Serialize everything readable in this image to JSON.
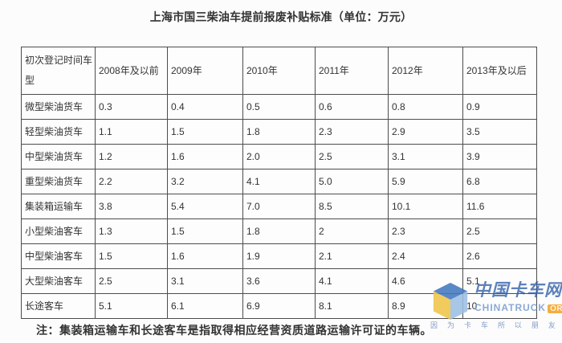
{
  "page": {
    "title": "上海市国三柴油车提前报废补贴标准（单位：万元）",
    "note": "注：集装箱运输车和长途客车是指取得相应经营资质道路运输许可证的车辆。"
  },
  "table": {
    "headers": [
      "初次登记时间车型",
      "2008年及以前",
      "2009年",
      "2010年",
      "2011年",
      "2012年",
      "2013年及以后"
    ],
    "rows": [
      {
        "label": "微型柴油货车",
        "values": [
          "0.3",
          "0.4",
          "0.5",
          "0.6",
          "0.8",
          "0.9"
        ]
      },
      {
        "label": "轻型柴油货车",
        "values": [
          "1.1",
          "1.5",
          "1.8",
          "2.3",
          "2.9",
          "3.5"
        ]
      },
      {
        "label": "中型柴油货车",
        "values": [
          "1.2",
          "1.6",
          "2.0",
          "2.5",
          "3.1",
          "3.9"
        ]
      },
      {
        "label": "重型柴油货车",
        "values": [
          "2.2",
          "3.2",
          "4.1",
          "5.0",
          "5.9",
          "6.8"
        ]
      },
      {
        "label": "集装箱运输车",
        "values": [
          "3.8",
          "5.4",
          "7.0",
          "8.5",
          "10.1",
          "11.6"
        ]
      },
      {
        "label": "小型柴油客车",
        "values": [
          "1.3",
          "1.5",
          "1.8",
          "2",
          "2.3",
          "2.5"
        ]
      },
      {
        "label": "中型柴油客车",
        "values": [
          "1.5",
          "1.6",
          "1.9",
          "2.1",
          "2.4",
          "2.6"
        ]
      },
      {
        "label": "大型柴油客车",
        "values": [
          "2.5",
          "3.1",
          "3.6",
          "4.1",
          "4.6",
          "5.1"
        ]
      },
      {
        "label": "长途客车",
        "values": [
          "5.1",
          "6.1",
          "6.9",
          "8.1",
          "8.9",
          "10"
        ]
      }
    ]
  },
  "watermark": {
    "site_name": "中国卡车网",
    "site_url_text": "CHINATRUCK",
    "site_url_badge": "ORG",
    "slogan": "因为卡车所以朋友",
    "colors": {
      "logo_blue": "#4379BF",
      "logo_yellow": "#F1C548",
      "logo_light_blue": "#9DBFE3",
      "badge_orange": "#F3A631",
      "name_blue": "#2F5EA8"
    }
  },
  "colors": {
    "table_border": "#4d4d4d",
    "text": "#333333",
    "background": "#fcfcfc"
  }
}
